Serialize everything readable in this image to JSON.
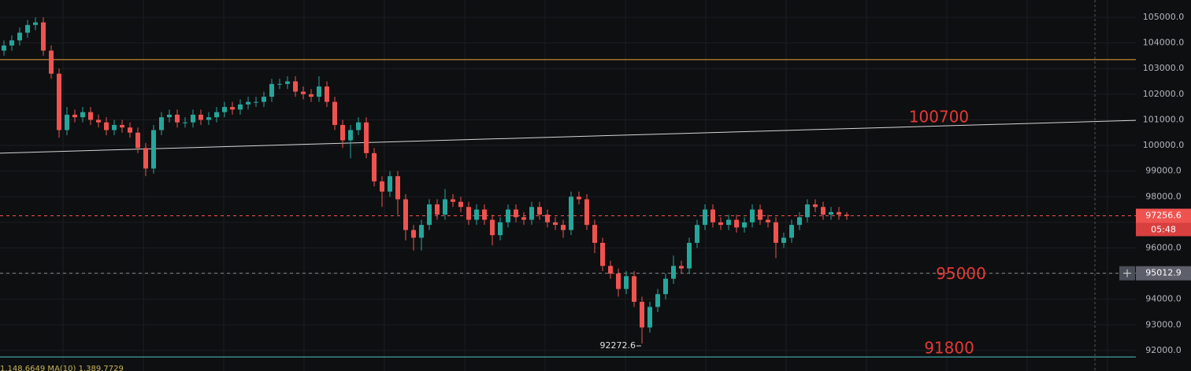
{
  "chart_data": {
    "type": "candlestick",
    "ylim": [
      91200,
      105675
    ],
    "yticks": [
      {
        "value": 92000,
        "label": "92000.0"
      },
      {
        "value": 93000,
        "label": "93000.0"
      },
      {
        "value": 94000,
        "label": "94000.0"
      },
      {
        "value": 95000,
        "label": "95000.0"
      },
      {
        "value": 96000,
        "label": "96000.0"
      },
      {
        "value": 97000,
        "label": "97000.0"
      },
      {
        "value": 98000,
        "label": "98000.0"
      },
      {
        "value": 99000,
        "label": "99000.0"
      },
      {
        "value": 100000,
        "label": "100000.0"
      },
      {
        "value": 101000,
        "label": "101000.0"
      },
      {
        "value": 102000,
        "label": "102000.0"
      },
      {
        "value": 103000,
        "label": "103000.0"
      },
      {
        "value": 104000,
        "label": "104000.0"
      },
      {
        "value": 105000,
        "label": "105000.0"
      }
    ],
    "grid": true,
    "up_color": "#26a69a",
    "down_color": "#ef5350",
    "open": [
      103700,
      103900,
      104100,
      104400,
      104700,
      104800,
      103700,
      102800,
      100600,
      101200,
      101100,
      101300,
      101000,
      100900,
      100600,
      100800,
      100700,
      100500,
      99900,
      99100,
      100600,
      101100,
      101200,
      100900,
      100900,
      101200,
      101000,
      101100,
      101300,
      101500,
      101400,
      101600,
      101700,
      101700,
      101900,
      102400,
      102400,
      102500,
      102100,
      102000,
      101900,
      102300,
      101700,
      100800,
      100200,
      100600,
      100900,
      99700,
      98600,
      98200,
      98800,
      97900,
      96700,
      96400,
      96900,
      97700,
      97300,
      97900,
      97800,
      97600,
      97100,
      97500,
      97100,
      96500,
      97000,
      97500,
      97200,
      97100,
      97600,
      97300,
      97000,
      96900,
      96700,
      98000,
      97900,
      96900,
      96200,
      95300,
      95000,
      94400,
      94900,
      93900,
      92900,
      93700,
      94200,
      94800,
      95300,
      95200,
      96200,
      96900,
      97500,
      97000,
      96900,
      97100,
      96800,
      97000,
      97500,
      97100,
      97000,
      96200,
      96400,
      96900,
      97200,
      97700,
      97600,
      97300,
      97400,
      97300
    ],
    "high": [
      104100,
      104300,
      104600,
      104900,
      105000,
      105000,
      103900,
      103000,
      101500,
      101400,
      101500,
      101500,
      101200,
      101100,
      101000,
      101000,
      100900,
      100700,
      100100,
      100800,
      101300,
      101400,
      101400,
      101100,
      101400,
      101400,
      101300,
      101500,
      101700,
      101700,
      101800,
      101900,
      101900,
      102100,
      102600,
      102600,
      102700,
      102700,
      102300,
      102200,
      102700,
      102500,
      101900,
      101000,
      100800,
      101100,
      101100,
      99900,
      98800,
      99000,
      99000,
      98100,
      96900,
      97100,
      97900,
      97900,
      98300,
      98100,
      98000,
      97800,
      97700,
      97700,
      97300,
      97200,
      97700,
      97700,
      97400,
      97800,
      97800,
      97500,
      97200,
      97100,
      98200,
      98200,
      98100,
      97100,
      96400,
      95500,
      95200,
      95100,
      95100,
      94100,
      93900,
      94400,
      95000,
      95700,
      95500,
      96400,
      97100,
      97700,
      97700,
      97200,
      97300,
      97300,
      97200,
      97700,
      97700,
      97300,
      97200,
      96600,
      97100,
      97400,
      97900,
      97900,
      97800,
      97600,
      97600,
      97400
    ],
    "low": [
      103500,
      103700,
      103900,
      104200,
      104500,
      103500,
      102600,
      100300,
      100400,
      100900,
      100900,
      100800,
      100700,
      100400,
      100400,
      100500,
      100300,
      99700,
      98800,
      98900,
      100400,
      100900,
      100700,
      100700,
      100700,
      100800,
      100800,
      100900,
      101100,
      101200,
      101200,
      101400,
      101500,
      101500,
      101700,
      102200,
      102200,
      101900,
      101800,
      101700,
      101700,
      101500,
      100600,
      99900,
      99500,
      100400,
      99500,
      98400,
      97600,
      98000,
      97300,
      96300,
      95900,
      95900,
      96700,
      97100,
      97100,
      97600,
      97400,
      96900,
      96900,
      96900,
      96100,
      96300,
      96800,
      97000,
      96900,
      96900,
      97100,
      96800,
      96700,
      96400,
      96500,
      97700,
      96700,
      95800,
      95100,
      94800,
      94100,
      94200,
      93700,
      92272.6,
      92700,
      93500,
      94000,
      94600,
      95000,
      95000,
      96000,
      96700,
      96800,
      96700,
      96700,
      96600,
      96600,
      96800,
      96900,
      96800,
      95600,
      96000,
      96200,
      96700,
      97000,
      97400,
      97100,
      97100,
      97100,
      97100
    ],
    "close": [
      103900,
      104100,
      104400,
      104700,
      104800,
      103700,
      102800,
      100600,
      101200,
      101100,
      101300,
      101000,
      100900,
      100600,
      100800,
      100700,
      100500,
      99900,
      99100,
      100600,
      101100,
      101200,
      100900,
      100900,
      101200,
      101000,
      101100,
      101300,
      101500,
      101400,
      101600,
      101700,
      101700,
      101900,
      102400,
      102400,
      102500,
      102100,
      102000,
      101900,
      102300,
      101700,
      100800,
      100200,
      100600,
      100900,
      99700,
      98600,
      98200,
      98800,
      97900,
      96700,
      96400,
      96900,
      97700,
      97300,
      97900,
      97800,
      97600,
      97100,
      97500,
      97100,
      96500,
      97000,
      97500,
      97200,
      97100,
      97600,
      97300,
      97000,
      96900,
      96700,
      98000,
      97900,
      96900,
      96200,
      95300,
      95000,
      94400,
      94900,
      93900,
      92900,
      93700,
      94200,
      94800,
      95300,
      95200,
      96200,
      96900,
      97500,
      97000,
      96900,
      97100,
      96800,
      97000,
      97500,
      97100,
      97000,
      96200,
      96400,
      96900,
      97200,
      97700,
      97600,
      97300,
      97400,
      97300,
      97256.6
    ],
    "levels": [
      {
        "value": 103350,
        "color": "#f0a53a"
      },
      {
        "value": 91750,
        "color": "#4fc3c8"
      }
    ],
    "trendline": {
      "start": 99700,
      "end": 100980,
      "color": "#d6d6d6"
    },
    "last_price": 97256.6,
    "countdown": "05:48",
    "crosshair_price": 95012.9,
    "annotations": [
      "100700",
      "95000",
      "91800"
    ],
    "indicator_text": "1,148.6649 MA(10) 1,389.7729"
  }
}
